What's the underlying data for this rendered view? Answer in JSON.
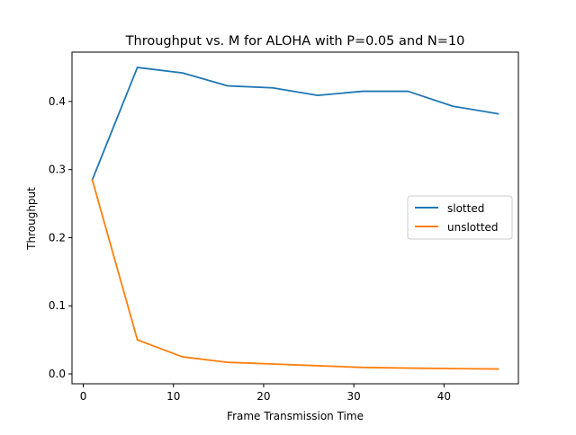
{
  "chart_data": {
    "type": "line",
    "title": "Throughput vs. M for ALOHA with P=0.05 and N=10",
    "xlabel": "Frame Transmission Time",
    "ylabel": "Throughput",
    "xlim": [
      -1.25,
      48.25
    ],
    "ylim": [
      -0.0145,
      0.4725
    ],
    "x_ticks": [
      0,
      10,
      20,
      30,
      40
    ],
    "y_ticks": [
      0.0,
      0.1,
      0.2,
      0.3,
      0.4
    ],
    "x_tick_labels": [
      "0",
      "10",
      "20",
      "30",
      "40"
    ],
    "y_tick_labels": [
      "0.0",
      "0.1",
      "0.2",
      "0.3",
      "0.4"
    ],
    "x": [
      1,
      6,
      11,
      16,
      21,
      26,
      31,
      36,
      41,
      46
    ],
    "series": [
      {
        "name": "slotted",
        "color": "#1f77b4",
        "values": [
          0.285,
          0.45,
          0.442,
          0.423,
          0.42,
          0.409,
          0.415,
          0.415,
          0.393,
          0.382
        ]
      },
      {
        "name": "unslotted",
        "color": "#ff7f0e",
        "values": [
          0.285,
          0.05,
          0.025,
          0.017,
          0.0145,
          0.012,
          0.0095,
          0.0085,
          0.0078,
          0.0072
        ]
      }
    ],
    "grid": false,
    "legend_position": "center-right"
  }
}
